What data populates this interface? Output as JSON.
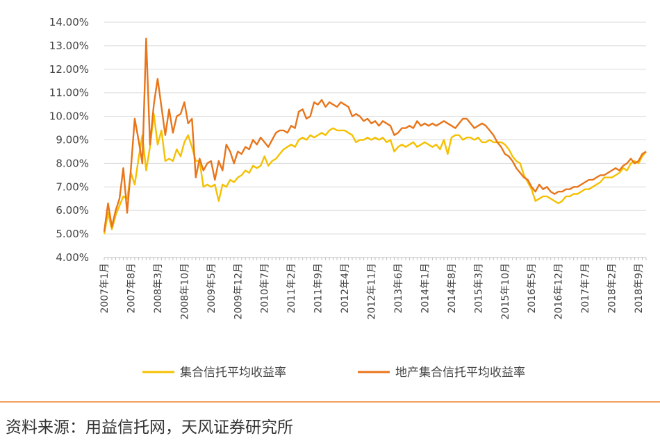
{
  "source": "资料来源：用益信托网，天风证券研究所",
  "chart_data": {
    "type": "line",
    "title": "",
    "xlabel": "",
    "ylabel": "",
    "ylim": [
      0.04,
      0.14
    ],
    "y_ticks": [
      "4.00%",
      "5.00%",
      "6.00%",
      "7.00%",
      "8.00%",
      "9.00%",
      "10.00%",
      "11.00%",
      "12.00%",
      "13.00%",
      "14.00%"
    ],
    "x_tick_labels": [
      "2007年1月",
      "2007年8月",
      "2008年3月",
      "2008年10月",
      "2009年5月",
      "2009年12月",
      "2010年7月",
      "2011年2月",
      "2011年9月",
      "2012年4月",
      "2012年11月",
      "2013年6月",
      "2014年1月",
      "2014年8月",
      "2015年3月",
      "2015年10月",
      "2016年5月",
      "2016年12月",
      "2017年7月",
      "2018年2月",
      "2018年9月"
    ],
    "x_start": "2007-01",
    "x_end": "2018-11",
    "grid": true,
    "legend_position": "bottom",
    "series": [
      {
        "name": "集合信托平均收益率",
        "color": "#f5c000",
        "points": [
          [
            "2007-01",
            0.05
          ],
          [
            "2007-02",
            0.059
          ],
          [
            "2007-03",
            0.052
          ],
          [
            "2007-04",
            0.058
          ],
          [
            "2007-05",
            0.062
          ],
          [
            "2007-06",
            0.066
          ],
          [
            "2007-07",
            0.065
          ],
          [
            "2007-08",
            0.076
          ],
          [
            "2007-09",
            0.071
          ],
          [
            "2007-10",
            0.082
          ],
          [
            "2007-11",
            0.092
          ],
          [
            "2007-12",
            0.077
          ],
          [
            "2008-01",
            0.087
          ],
          [
            "2008-02",
            0.101
          ],
          [
            "2008-03",
            0.088
          ],
          [
            "2008-04",
            0.094
          ],
          [
            "2008-05",
            0.081
          ],
          [
            "2008-06",
            0.082
          ],
          [
            "2008-07",
            0.081
          ],
          [
            "2008-08",
            0.086
          ],
          [
            "2008-09",
            0.083
          ],
          [
            "2008-10",
            0.089
          ],
          [
            "2008-11",
            0.092
          ],
          [
            "2008-12",
            0.087
          ],
          [
            "2009-01",
            0.081
          ],
          [
            "2009-02",
            0.081
          ],
          [
            "2009-03",
            0.07
          ],
          [
            "2009-04",
            0.071
          ],
          [
            "2009-05",
            0.07
          ],
          [
            "2009-06",
            0.071
          ],
          [
            "2009-07",
            0.064
          ],
          [
            "2009-08",
            0.071
          ],
          [
            "2009-09",
            0.07
          ],
          [
            "2009-10",
            0.073
          ],
          [
            "2009-11",
            0.072
          ],
          [
            "2009-12",
            0.074
          ],
          [
            "2010-01",
            0.075
          ],
          [
            "2010-02",
            0.077
          ],
          [
            "2010-03",
            0.076
          ],
          [
            "2010-04",
            0.079
          ],
          [
            "2010-05",
            0.078
          ],
          [
            "2010-06",
            0.079
          ],
          [
            "2010-07",
            0.083
          ],
          [
            "2010-08",
            0.079
          ],
          [
            "2010-09",
            0.081
          ],
          [
            "2010-10",
            0.082
          ],
          [
            "2010-11",
            0.084
          ],
          [
            "2010-12",
            0.086
          ],
          [
            "2011-01",
            0.087
          ],
          [
            "2011-02",
            0.088
          ],
          [
            "2011-03",
            0.087
          ],
          [
            "2011-04",
            0.09
          ],
          [
            "2011-05",
            0.091
          ],
          [
            "2011-06",
            0.09
          ],
          [
            "2011-07",
            0.092
          ],
          [
            "2011-08",
            0.091
          ],
          [
            "2011-09",
            0.092
          ],
          [
            "2011-10",
            0.093
          ],
          [
            "2011-11",
            0.092
          ],
          [
            "2011-12",
            0.094
          ],
          [
            "2012-01",
            0.095
          ],
          [
            "2012-02",
            0.094
          ],
          [
            "2012-03",
            0.094
          ],
          [
            "2012-04",
            0.094
          ],
          [
            "2012-05",
            0.093
          ],
          [
            "2012-06",
            0.092
          ],
          [
            "2012-07",
            0.089
          ],
          [
            "2012-08",
            0.09
          ],
          [
            "2012-09",
            0.09
          ],
          [
            "2012-10",
            0.091
          ],
          [
            "2012-11",
            0.09
          ],
          [
            "2012-12",
            0.091
          ],
          [
            "2013-01",
            0.09
          ],
          [
            "2013-02",
            0.091
          ],
          [
            "2013-03",
            0.089
          ],
          [
            "2013-04",
            0.09
          ],
          [
            "2013-05",
            0.085
          ],
          [
            "2013-06",
            0.087
          ],
          [
            "2013-07",
            0.088
          ],
          [
            "2013-08",
            0.087
          ],
          [
            "2013-09",
            0.088
          ],
          [
            "2013-10",
            0.089
          ],
          [
            "2013-11",
            0.087
          ],
          [
            "2013-12",
            0.088
          ],
          [
            "2014-01",
            0.089
          ],
          [
            "2014-02",
            0.088
          ],
          [
            "2014-03",
            0.087
          ],
          [
            "2014-04",
            0.088
          ],
          [
            "2014-05",
            0.086
          ],
          [
            "2014-06",
            0.09
          ],
          [
            "2014-07",
            0.084
          ],
          [
            "2014-08",
            0.091
          ],
          [
            "2014-09",
            0.092
          ],
          [
            "2014-10",
            0.092
          ],
          [
            "2014-11",
            0.09
          ],
          [
            "2014-12",
            0.091
          ],
          [
            "2015-01",
            0.091
          ],
          [
            "2015-02",
            0.09
          ],
          [
            "2015-03",
            0.091
          ],
          [
            "2015-04",
            0.089
          ],
          [
            "2015-05",
            0.089
          ],
          [
            "2015-06",
            0.09
          ],
          [
            "2015-07",
            0.089
          ],
          [
            "2015-08",
            0.089
          ],
          [
            "2015-09",
            0.089
          ],
          [
            "2015-10",
            0.088
          ],
          [
            "2015-11",
            0.086
          ],
          [
            "2015-12",
            0.083
          ],
          [
            "2016-01",
            0.081
          ],
          [
            "2016-02",
            0.08
          ],
          [
            "2016-03",
            0.075
          ],
          [
            "2016-04",
            0.072
          ],
          [
            "2016-05",
            0.069
          ],
          [
            "2016-06",
            0.064
          ],
          [
            "2016-07",
            0.065
          ],
          [
            "2016-08",
            0.066
          ],
          [
            "2016-09",
            0.066
          ],
          [
            "2016-10",
            0.065
          ],
          [
            "2016-11",
            0.064
          ],
          [
            "2016-12",
            0.063
          ],
          [
            "2017-01",
            0.064
          ],
          [
            "2017-02",
            0.066
          ],
          [
            "2017-03",
            0.066
          ],
          [
            "2017-04",
            0.067
          ],
          [
            "2017-05",
            0.067
          ],
          [
            "2017-06",
            0.068
          ],
          [
            "2017-07",
            0.069
          ],
          [
            "2017-08",
            0.069
          ],
          [
            "2017-09",
            0.07
          ],
          [
            "2017-10",
            0.071
          ],
          [
            "2017-11",
            0.072
          ],
          [
            "2017-12",
            0.074
          ],
          [
            "2018-01",
            0.074
          ],
          [
            "2018-02",
            0.074
          ],
          [
            "2018-03",
            0.075
          ],
          [
            "2018-04",
            0.076
          ],
          [
            "2018-05",
            0.078
          ],
          [
            "2018-06",
            0.077
          ],
          [
            "2018-07",
            0.08
          ],
          [
            "2018-08",
            0.081
          ],
          [
            "2018-09",
            0.08
          ],
          [
            "2018-10",
            0.083
          ],
          [
            "2018-11",
            0.085
          ]
        ]
      },
      {
        "name": "地产集合信托平均收益率",
        "color": "#e8751a",
        "points": [
          [
            "2007-01",
            0.051
          ],
          [
            "2007-02",
            0.063
          ],
          [
            "2007-03",
            0.053
          ],
          [
            "2007-04",
            0.06
          ],
          [
            "2007-05",
            0.065
          ],
          [
            "2007-06",
            0.078
          ],
          [
            "2007-07",
            0.059
          ],
          [
            "2007-08",
            0.078
          ],
          [
            "2007-09",
            0.099
          ],
          [
            "2007-10",
            0.09
          ],
          [
            "2007-11",
            0.08
          ],
          [
            "2007-12",
            0.133
          ],
          [
            "2008-01",
            0.088
          ],
          [
            "2008-02",
            0.105
          ],
          [
            "2008-03",
            0.116
          ],
          [
            "2008-04",
            0.104
          ],
          [
            "2008-05",
            0.092
          ],
          [
            "2008-06",
            0.103
          ],
          [
            "2008-07",
            0.093
          ],
          [
            "2008-08",
            0.1
          ],
          [
            "2008-09",
            0.101
          ],
          [
            "2008-10",
            0.106
          ],
          [
            "2008-11",
            0.097
          ],
          [
            "2008-12",
            0.099
          ],
          [
            "2009-01",
            0.074
          ],
          [
            "2009-02",
            0.082
          ],
          [
            "2009-03",
            0.077
          ],
          [
            "2009-04",
            0.08
          ],
          [
            "2009-05",
            0.081
          ],
          [
            "2009-06",
            0.073
          ],
          [
            "2009-07",
            0.081
          ],
          [
            "2009-08",
            0.077
          ],
          [
            "2009-09",
            0.088
          ],
          [
            "2009-10",
            0.085
          ],
          [
            "2009-11",
            0.08
          ],
          [
            "2009-12",
            0.085
          ],
          [
            "2010-01",
            0.084
          ],
          [
            "2010-02",
            0.087
          ],
          [
            "2010-03",
            0.086
          ],
          [
            "2010-04",
            0.09
          ],
          [
            "2010-05",
            0.088
          ],
          [
            "2010-06",
            0.091
          ],
          [
            "2010-07",
            0.089
          ],
          [
            "2010-08",
            0.087
          ],
          [
            "2010-09",
            0.09
          ],
          [
            "2010-10",
            0.093
          ],
          [
            "2010-11",
            0.094
          ],
          [
            "2010-12",
            0.094
          ],
          [
            "2011-01",
            0.093
          ],
          [
            "2011-02",
            0.096
          ],
          [
            "2011-03",
            0.095
          ],
          [
            "2011-04",
            0.102
          ],
          [
            "2011-05",
            0.103
          ],
          [
            "2011-06",
            0.099
          ],
          [
            "2011-07",
            0.1
          ],
          [
            "2011-08",
            0.106
          ],
          [
            "2011-09",
            0.105
          ],
          [
            "2011-10",
            0.107
          ],
          [
            "2011-11",
            0.104
          ],
          [
            "2011-12",
            0.106
          ],
          [
            "2012-01",
            0.105
          ],
          [
            "2012-02",
            0.104
          ],
          [
            "2012-03",
            0.106
          ],
          [
            "2012-04",
            0.105
          ],
          [
            "2012-05",
            0.104
          ],
          [
            "2012-06",
            0.1
          ],
          [
            "2012-07",
            0.101
          ],
          [
            "2012-08",
            0.1
          ],
          [
            "2012-09",
            0.098
          ],
          [
            "2012-10",
            0.099
          ],
          [
            "2012-11",
            0.097
          ],
          [
            "2012-12",
            0.098
          ],
          [
            "2013-01",
            0.096
          ],
          [
            "2013-02",
            0.098
          ],
          [
            "2013-03",
            0.097
          ],
          [
            "2013-04",
            0.096
          ],
          [
            "2013-05",
            0.092
          ],
          [
            "2013-06",
            0.093
          ],
          [
            "2013-07",
            0.095
          ],
          [
            "2013-08",
            0.095
          ],
          [
            "2013-09",
            0.096
          ],
          [
            "2013-10",
            0.095
          ],
          [
            "2013-11",
            0.098
          ],
          [
            "2013-12",
            0.096
          ],
          [
            "2014-01",
            0.097
          ],
          [
            "2014-02",
            0.096
          ],
          [
            "2014-03",
            0.097
          ],
          [
            "2014-04",
            0.096
          ],
          [
            "2014-05",
            0.097
          ],
          [
            "2014-06",
            0.098
          ],
          [
            "2014-07",
            0.097
          ],
          [
            "2014-08",
            0.096
          ],
          [
            "2014-09",
            0.095
          ],
          [
            "2014-10",
            0.097
          ],
          [
            "2014-11",
            0.099
          ],
          [
            "2014-12",
            0.099
          ],
          [
            "2015-01",
            0.097
          ],
          [
            "2015-02",
            0.095
          ],
          [
            "2015-03",
            0.096
          ],
          [
            "2015-04",
            0.097
          ],
          [
            "2015-05",
            0.096
          ],
          [
            "2015-06",
            0.094
          ],
          [
            "2015-07",
            0.092
          ],
          [
            "2015-08",
            0.089
          ],
          [
            "2015-09",
            0.087
          ],
          [
            "2015-10",
            0.084
          ],
          [
            "2015-11",
            0.083
          ],
          [
            "2015-12",
            0.081
          ],
          [
            "2016-01",
            0.078
          ],
          [
            "2016-02",
            0.076
          ],
          [
            "2016-03",
            0.074
          ],
          [
            "2016-04",
            0.073
          ],
          [
            "2016-05",
            0.07
          ],
          [
            "2016-06",
            0.068
          ],
          [
            "2016-07",
            0.071
          ],
          [
            "2016-08",
            0.069
          ],
          [
            "2016-09",
            0.07
          ],
          [
            "2016-10",
            0.068
          ],
          [
            "2016-11",
            0.067
          ],
          [
            "2016-12",
            0.068
          ],
          [
            "2017-01",
            0.068
          ],
          [
            "2017-02",
            0.069
          ],
          [
            "2017-03",
            0.069
          ],
          [
            "2017-04",
            0.07
          ],
          [
            "2017-05",
            0.07
          ],
          [
            "2017-06",
            0.071
          ],
          [
            "2017-07",
            0.072
          ],
          [
            "2017-08",
            0.073
          ],
          [
            "2017-09",
            0.073
          ],
          [
            "2017-10",
            0.074
          ],
          [
            "2017-11",
            0.075
          ],
          [
            "2017-12",
            0.075
          ],
          [
            "2018-01",
            0.076
          ],
          [
            "2018-02",
            0.077
          ],
          [
            "2018-03",
            0.078
          ],
          [
            "2018-04",
            0.077
          ],
          [
            "2018-05",
            0.079
          ],
          [
            "2018-06",
            0.08
          ],
          [
            "2018-07",
            0.082
          ],
          [
            "2018-08",
            0.08
          ],
          [
            "2018-09",
            0.081
          ],
          [
            "2018-10",
            0.084
          ],
          [
            "2018-11",
            0.085
          ]
        ]
      }
    ]
  }
}
